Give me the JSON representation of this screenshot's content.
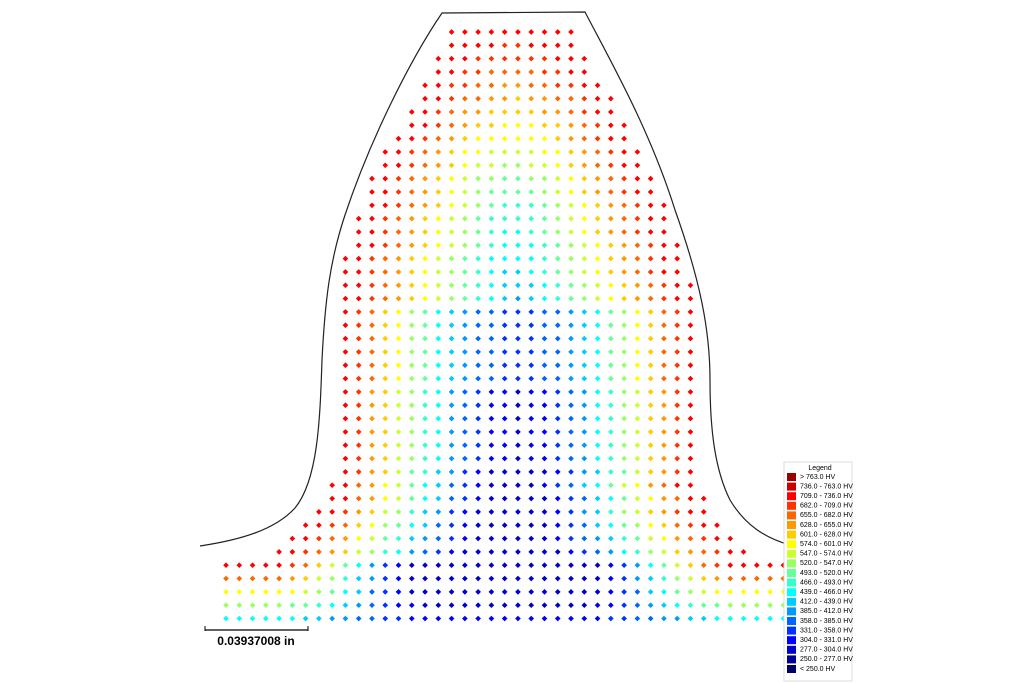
{
  "hardness_map": {
    "rows": [
      [
        2,
        2,
        2,
        2,
        2,
        2,
        2,
        2,
        2,
        2
      ],
      [
        2,
        2,
        2,
        2,
        3,
        3,
        2,
        2,
        2,
        2
      ],
      [
        2,
        2,
        2,
        3,
        3,
        3,
        3,
        3,
        3,
        2,
        2,
        2
      ],
      [
        2,
        2,
        3,
        3,
        4,
        4,
        4,
        4,
        3,
        3,
        2,
        2
      ],
      [
        2,
        2,
        3,
        3,
        4,
        4,
        5,
        5,
        4,
        4,
        3,
        3,
        2,
        2
      ],
      [
        2,
        2,
        3,
        4,
        4,
        5,
        5,
        6,
        5,
        5,
        4,
        4,
        3,
        2,
        2
      ],
      [
        2,
        2,
        3,
        4,
        5,
        5,
        6,
        6,
        6,
        6,
        5,
        5,
        4,
        3,
        2,
        2
      ],
      [
        2,
        2,
        3,
        4,
        5,
        6,
        6,
        7,
        7,
        7,
        6,
        6,
        5,
        4,
        3,
        2,
        2
      ],
      [
        2,
        2,
        3,
        4,
        5,
        6,
        7,
        7,
        7,
        7,
        7,
        7,
        6,
        5,
        4,
        3,
        2,
        2
      ],
      [
        2,
        2,
        3,
        4,
        5,
        6,
        7,
        7,
        8,
        8,
        8,
        8,
        7,
        7,
        6,
        5,
        4,
        3,
        2,
        2
      ],
      [
        2,
        2,
        3,
        4,
        5,
        6,
        7,
        8,
        8,
        9,
        9,
        8,
        8,
        7,
        6,
        5,
        4,
        3,
        2,
        2
      ],
      [
        2,
        2,
        3,
        4,
        5,
        6,
        7,
        8,
        9,
        9,
        10,
        10,
        9,
        9,
        8,
        7,
        6,
        5,
        4,
        3,
        2,
        2
      ],
      [
        2,
        2,
        3,
        4,
        5,
        6,
        7,
        8,
        9,
        10,
        10,
        10,
        10,
        9,
        8,
        7,
        6,
        5,
        4,
        3,
        2,
        2
      ],
      [
        2,
        2,
        3,
        4,
        5,
        6,
        7,
        8,
        9,
        10,
        11,
        11,
        11,
        10,
        9,
        8,
        7,
        6,
        5,
        4,
        3,
        2,
        2
      ],
      [
        2,
        2,
        3,
        4,
        5,
        6,
        7,
        8,
        9,
        10,
        11,
        11,
        11,
        11,
        10,
        9,
        8,
        7,
        6,
        5,
        4,
        3,
        2,
        2
      ],
      [
        2,
        2,
        3,
        4,
        5,
        6,
        7,
        8,
        9,
        10,
        11,
        12,
        12,
        11,
        10,
        9,
        8,
        7,
        6,
        5,
        4,
        3,
        2,
        2
      ],
      [
        2,
        2,
        3,
        4,
        5,
        6,
        7,
        8,
        9,
        10,
        11,
        12,
        12,
        12,
        11,
        10,
        9,
        8,
        7,
        6,
        5,
        4,
        3,
        2,
        2
      ],
      [
        2,
        2,
        3,
        4,
        5,
        6,
        7,
        8,
        9,
        10,
        11,
        12,
        12,
        12,
        12,
        11,
        10,
        9,
        8,
        7,
        6,
        5,
        4,
        3,
        2,
        2
      ],
      [
        2,
        2,
        3,
        4,
        5,
        6,
        7,
        8,
        9,
        10,
        11,
        12,
        13,
        13,
        12,
        11,
        10,
        9,
        8,
        7,
        6,
        5,
        4,
        3,
        2,
        2
      ],
      [
        2,
        2,
        3,
        4,
        5,
        6,
        7,
        8,
        9,
        10,
        11,
        12,
        13,
        13,
        13,
        12,
        11,
        10,
        9,
        8,
        7,
        6,
        5,
        4,
        3,
        2,
        2
      ],
      [
        2,
        2,
        3,
        4,
        5,
        6,
        7,
        8,
        9,
        10,
        11,
        12,
        13,
        14,
        13,
        12,
        11,
        10,
        9,
        8,
        7,
        6,
        5,
        4,
        3,
        2,
        2
      ],
      [
        2,
        3,
        4,
        6,
        7,
        9,
        10,
        12,
        13,
        14,
        15,
        15,
        16,
        16,
        16,
        15,
        15,
        14,
        13,
        12,
        10,
        9,
        7,
        6,
        4,
        3,
        2
      ],
      [
        2,
        3,
        4,
        6,
        7,
        9,
        10,
        12,
        13,
        14,
        15,
        15,
        16,
        16,
        16,
        15,
        15,
        14,
        13,
        12,
        10,
        9,
        7,
        6,
        4,
        3,
        2
      ],
      [
        2,
        3,
        4,
        6,
        7,
        9,
        10,
        12,
        13,
        14,
        15,
        15,
        16,
        16,
        16,
        15,
        15,
        14,
        13,
        12,
        10,
        9,
        7,
        6,
        4,
        3,
        2
      ],
      [
        2,
        3,
        4,
        6,
        7,
        9,
        10,
        12,
        13,
        14,
        15,
        15,
        16,
        16,
        16,
        15,
        15,
        14,
        13,
        12,
        10,
        9,
        7,
        6,
        4,
        3,
        2
      ],
      [
        2,
        3,
        4,
        6,
        7,
        9,
        10,
        12,
        13,
        14,
        15,
        15,
        16,
        16,
        16,
        15,
        15,
        14,
        13,
        12,
        10,
        9,
        7,
        6,
        4,
        3,
        2
      ],
      [
        2,
        3,
        4,
        6,
        7,
        9,
        10,
        12,
        13,
        14,
        15,
        15,
        16,
        16,
        16,
        15,
        15,
        14,
        13,
        12,
        10,
        9,
        7,
        6,
        4,
        3,
        2
      ],
      [
        2,
        3,
        5,
        6,
        8,
        9,
        11,
        12,
        14,
        15,
        16,
        17,
        17,
        18,
        17,
        17,
        16,
        15,
        14,
        12,
        11,
        9,
        8,
        6,
        5,
        3,
        2
      ],
      [
        2,
        3,
        5,
        6,
        8,
        9,
        11,
        12,
        14,
        15,
        16,
        17,
        17,
        18,
        17,
        17,
        16,
        15,
        14,
        12,
        11,
        9,
        8,
        6,
        5,
        3,
        2
      ],
      [
        2,
        3,
        5,
        6,
        8,
        9,
        11,
        12,
        14,
        15,
        16,
        17,
        17,
        18,
        17,
        17,
        16,
        15,
        14,
        12,
        11,
        9,
        8,
        6,
        5,
        3,
        2
      ],
      [
        2,
        3,
        5,
        6,
        8,
        9,
        11,
        12,
        14,
        15,
        16,
        17,
        17,
        18,
        17,
        17,
        16,
        15,
        14,
        12,
        11,
        9,
        8,
        6,
        5,
        3,
        2
      ],
      [
        2,
        3,
        5,
        6,
        8,
        9,
        11,
        12,
        14,
        15,
        16,
        17,
        17,
        18,
        17,
        17,
        16,
        15,
        14,
        12,
        11,
        9,
        8,
        6,
        5,
        3,
        2
      ],
      [
        2,
        3,
        5,
        6,
        8,
        9,
        11,
        12,
        14,
        15,
        16,
        17,
        17,
        18,
        17,
        17,
        16,
        15,
        14,
        12,
        11,
        9,
        8,
        6,
        5,
        3,
        2
      ],
      [
        2,
        3,
        5,
        6,
        8,
        10,
        11,
        13,
        14,
        16,
        17,
        18,
        18,
        18,
        18,
        18,
        17,
        16,
        14,
        13,
        11,
        10,
        8,
        6,
        5,
        3,
        2
      ],
      [
        2,
        2,
        4,
        5,
        7,
        8,
        10,
        12,
        13,
        15,
        16,
        17,
        18,
        18,
        18,
        18,
        17,
        16,
        15,
        13,
        12,
        10,
        8,
        7,
        5,
        4,
        2,
        2
      ],
      [
        2,
        2,
        4,
        5,
        7,
        8,
        10,
        12,
        13,
        15,
        16,
        17,
        18,
        18,
        18,
        18,
        18,
        17,
        16,
        15,
        13,
        12,
        10,
        8,
        7,
        5,
        4,
        2,
        2
      ],
      [
        2,
        2,
        3,
        5,
        6,
        8,
        9,
        11,
        13,
        14,
        16,
        17,
        18,
        18,
        18,
        18,
        18,
        18,
        17,
        16,
        14,
        13,
        11,
        9,
        8,
        6,
        5,
        3,
        2,
        2
      ],
      [
        2,
        2,
        3,
        4,
        6,
        7,
        9,
        10,
        12,
        13,
        15,
        16,
        17,
        18,
        18,
        18,
        18,
        18,
        18,
        17,
        16,
        15,
        13,
        12,
        10,
        9,
        7,
        6,
        4,
        3,
        2,
        2
      ],
      [
        2,
        2,
        3,
        4,
        5,
        7,
        8,
        10,
        11,
        13,
        14,
        15,
        16,
        17,
        18,
        18,
        18,
        18,
        18,
        18,
        17,
        16,
        15,
        14,
        13,
        11,
        10,
        8,
        7,
        5,
        4,
        3,
        2,
        2
      ],
      [
        2,
        2,
        3,
        4,
        5,
        6,
        8,
        9,
        11,
        12,
        14,
        15,
        16,
        17,
        18,
        18,
        18,
        18,
        18,
        18,
        18,
        18,
        17,
        16,
        15,
        14,
        12,
        11,
        9,
        8,
        6,
        5,
        4,
        3,
        2,
        2
      ],
      [
        2,
        2,
        2,
        2,
        2,
        3,
        4,
        6,
        8,
        10,
        12,
        14,
        16,
        17,
        18,
        18,
        18,
        18,
        18,
        18,
        18,
        18,
        18,
        18,
        18,
        18,
        18,
        18,
        18,
        17,
        16,
        14,
        12,
        10,
        8,
        6,
        4,
        3,
        2,
        2,
        2,
        2,
        2
      ],
      [
        4,
        4,
        4,
        4,
        4,
        5,
        6,
        8,
        9,
        11,
        13,
        14,
        16,
        17,
        18,
        18,
        18,
        18,
        18,
        18,
        18,
        18,
        18,
        18,
        18,
        18,
        18,
        18,
        18,
        17,
        16,
        14,
        13,
        11,
        9,
        8,
        6,
        5,
        4,
        4,
        4,
        4,
        4
      ],
      [
        7,
        7,
        7,
        7,
        7,
        7,
        8,
        9,
        10,
        12,
        13,
        15,
        16,
        17,
        18,
        18,
        18,
        18,
        18,
        18,
        18,
        18,
        18,
        18,
        18,
        18,
        18,
        18,
        18,
        17,
        16,
        15,
        13,
        12,
        10,
        9,
        8,
        7,
        7,
        7,
        7,
        7,
        7
      ],
      [
        9,
        9,
        9,
        9,
        9,
        10,
        10,
        11,
        12,
        13,
        14,
        15,
        16,
        17,
        17,
        18,
        18,
        18,
        18,
        18,
        18,
        18,
        18,
        18,
        18,
        18,
        18,
        18,
        17,
        17,
        16,
        15,
        14,
        13,
        12,
        11,
        10,
        10,
        9,
        9,
        9,
        9,
        9
      ],
      [
        12,
        12,
        12,
        12,
        12,
        12,
        13,
        13,
        14,
        14,
        15,
        15,
        16,
        16,
        17,
        17,
        17,
        17,
        17,
        17,
        17,
        17,
        17,
        17,
        17,
        17,
        17,
        17,
        17,
        16,
        16,
        15,
        15,
        14,
        14,
        13,
        13,
        12,
        12,
        12,
        12,
        12,
        12
      ]
    ]
  },
  "legend": {
    "title": "Legend",
    "items": [
      {
        "label": "> 763.0 HV",
        "color": "#990000"
      },
      {
        "label": "736.0 - 763.0 HV",
        "color": "#cc0000"
      },
      {
        "label": "709.0 - 736.0 HV",
        "color": "#ff0000"
      },
      {
        "label": "682.0 - 709.0 HV",
        "color": "#ff3300"
      },
      {
        "label": "655.0 - 682.0 HV",
        "color": "#ff6600"
      },
      {
        "label": "628.0 - 655.0 HV",
        "color": "#ff9900"
      },
      {
        "label": "601.0 - 628.0 HV",
        "color": "#ffcc00"
      },
      {
        "label": "574.0 - 601.0 HV",
        "color": "#ffff00"
      },
      {
        "label": "547.0 - 574.0 HV",
        "color": "#ccff33"
      },
      {
        "label": "520.0 - 547.0 HV",
        "color": "#99ff66"
      },
      {
        "label": "493.0 - 520.0 HV",
        "color": "#66ff99"
      },
      {
        "label": "466.0 - 493.0 HV",
        "color": "#33ffcc"
      },
      {
        "label": "439.0 - 466.0 HV",
        "color": "#00ffff"
      },
      {
        "label": "412.0 - 439.0 HV",
        "color": "#00ccff"
      },
      {
        "label": "385.0 - 412.0 HV",
        "color": "#0099ff"
      },
      {
        "label": "358.0 - 385.0 HV",
        "color": "#0066ff"
      },
      {
        "label": "331.0 - 358.0 HV",
        "color": "#0033ff"
      },
      {
        "label": "304.0 - 331.0 HV",
        "color": "#0000ff"
      },
      {
        "label": "277.0 - 304.0 HV",
        "color": "#0000cc"
      },
      {
        "label": "250.0 - 277.0 HV",
        "color": "#000099"
      },
      {
        "label": "< 250.0 HV",
        "color": "#000066"
      }
    ]
  },
  "scale_bar": {
    "label": "0.03937008 in"
  }
}
